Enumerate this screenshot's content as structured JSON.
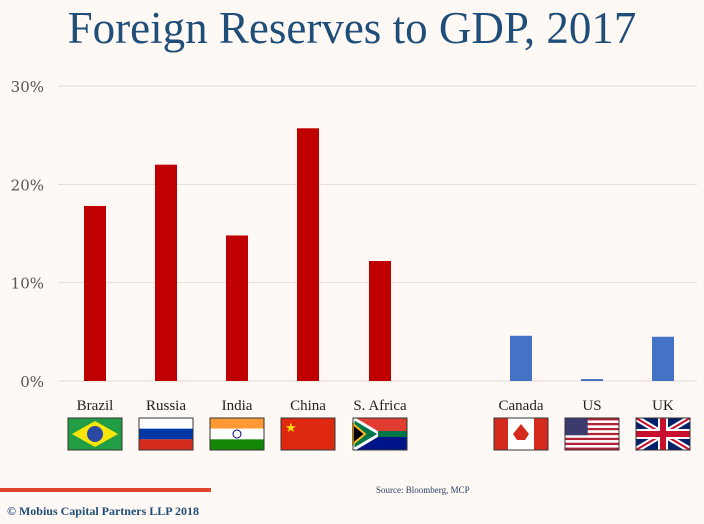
{
  "chart_data": {
    "type": "bar",
    "title": "Foreign Reserves to GDP, 2017",
    "categories": [
      "Brazil",
      "Russia",
      "India",
      "China",
      "S. Africa",
      "Canada",
      "US",
      "UK"
    ],
    "values": [
      17.8,
      22.0,
      14.8,
      25.7,
      12.2,
      4.6,
      0.2,
      4.5
    ],
    "groups": [
      "emerging",
      "emerging",
      "emerging",
      "emerging",
      "emerging",
      "developed",
      "developed",
      "developed"
    ],
    "colors": {
      "emerging": "#c00000",
      "developed": "#4472c4"
    },
    "ylim": [
      0,
      30
    ],
    "yticks": [
      0,
      10,
      20,
      30
    ],
    "ytick_labels": [
      "0%",
      "10%",
      "20%",
      "30%"
    ],
    "grid": true,
    "xlabel": "",
    "ylabel": ""
  },
  "source": "Source: Bloomberg, MCP",
  "copyright": "© Mobius Capital Partners LLP 2018"
}
